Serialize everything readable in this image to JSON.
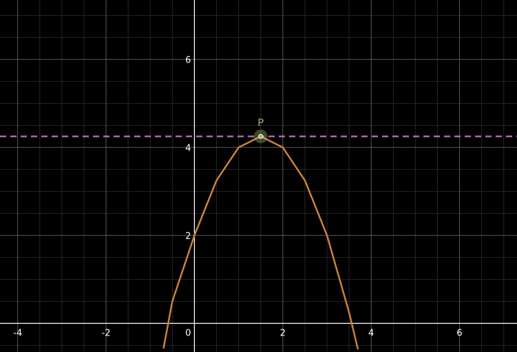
{
  "chart_data": {
    "type": "line",
    "title": "",
    "xlabel": "",
    "ylabel": "",
    "xlim": [
      -4.4,
      7.3
    ],
    "ylim": [
      -0.65,
      7.35
    ],
    "grid": true,
    "x_ticks": [
      -4,
      -2,
      0,
      2,
      4,
      6
    ],
    "x_tick_labels": [
      "-4",
      "-2",
      "0",
      "2",
      "4",
      "6"
    ],
    "y_ticks": [
      2,
      4,
      6
    ],
    "y_tick_labels": [
      "2",
      "4",
      "6"
    ],
    "series": [
      {
        "kind": "curve",
        "color": "#c8843a",
        "x": [
          -0.7,
          -0.5,
          0,
          0.5,
          1.0,
          1.5,
          2.0,
          2.5,
          3.0,
          3.5,
          3.7
        ],
        "y": [
          -0.57,
          0.5,
          2.0,
          3.25,
          4.0,
          4.25,
          4.0,
          3.25,
          2.0,
          0.25,
          -0.59
        ]
      },
      {
        "kind": "horizontal-line",
        "color": "#c86ec8",
        "style": "dashed",
        "y": 4.25
      }
    ],
    "points": [
      {
        "label": "P",
        "x": 1.5,
        "y": 4.25,
        "color": "#9bb06a"
      }
    ],
    "colors": {
      "background": "#000000",
      "grid_major": "#5a5a5a",
      "grid_minor": "#262626",
      "axis": "#ffffff"
    }
  }
}
